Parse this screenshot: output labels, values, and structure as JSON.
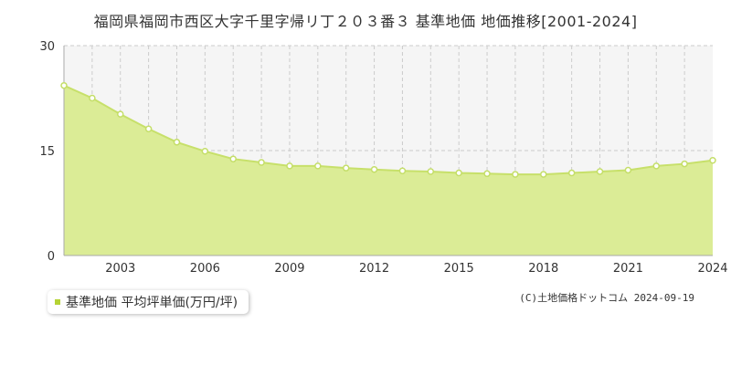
{
  "page": {
    "title": "福岡県福岡市西区大字千里字帰リ丁２０３番３ 基準地価 地価推移[2001-2024]",
    "copyright": "(C)土地価格ドットコム 2024-09-19"
  },
  "legend": {
    "label": "基準地価 平均坪単価(万円/坪)"
  },
  "colors": {
    "fill": "#dbec96",
    "line": "#c7e06a",
    "point_fill": "#ffffff",
    "point_stroke": "#c4de68",
    "marker": "#b5d334",
    "grid": "#cccccc",
    "axis_text": "#333333",
    "upper_bg": "#f5f5f5"
  },
  "chart_data": {
    "type": "area",
    "title": "福岡県福岡市西区大字千里字帰リ丁２０３番３ 基準地価 地価推移[2001-2024]",
    "xlabel": "",
    "ylabel": "",
    "xlim": [
      2001,
      2024
    ],
    "ylim": [
      0,
      30
    ],
    "yticks": [
      0,
      15,
      30
    ],
    "xticks": [
      2003,
      2006,
      2009,
      2012,
      2015,
      2018,
      2021,
      2024
    ],
    "grid": true,
    "legend_position": "bottom-left",
    "series": [
      {
        "name": "基準地価 平均坪単価(万円/坪)",
        "x": [
          2001,
          2002,
          2003,
          2004,
          2005,
          2006,
          2007,
          2008,
          2009,
          2010,
          2011,
          2012,
          2013,
          2014,
          2015,
          2016,
          2017,
          2018,
          2019,
          2020,
          2021,
          2022,
          2023,
          2024
        ],
        "values": [
          24.3,
          22.5,
          20.2,
          18.1,
          16.2,
          14.9,
          13.8,
          13.3,
          12.8,
          12.8,
          12.5,
          12.3,
          12.1,
          12.0,
          11.8,
          11.7,
          11.6,
          11.6,
          11.8,
          12.0,
          12.2,
          12.8,
          13.1,
          13.6
        ]
      }
    ]
  }
}
